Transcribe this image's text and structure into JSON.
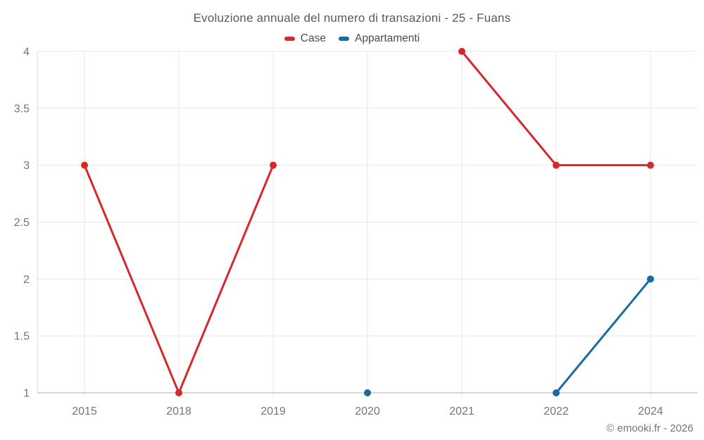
{
  "title": "Evoluzione annuale del numero di transazioni - 25 - Fuans",
  "footer": "© emooki.fr - 2026",
  "legend": {
    "items": [
      {
        "label": "Case",
        "color": "#d5282d"
      },
      {
        "label": "Appartamenti",
        "color": "#166ba0"
      }
    ]
  },
  "chart_data": {
    "type": "line",
    "title": "Evoluzione annuale del numero di transazioni - 25 - Fuans",
    "categories": [
      "2015",
      "2018",
      "2019",
      "2020",
      "2021",
      "2022",
      "2024"
    ],
    "series": [
      {
        "name": "Case",
        "color": "#d5282d",
        "values": [
          3,
          1,
          3,
          null,
          4,
          3,
          3
        ]
      },
      {
        "name": "Appartamenti",
        "color": "#166ba0",
        "values": [
          null,
          null,
          null,
          1,
          null,
          1,
          2
        ]
      }
    ],
    "xlabel": "",
    "ylabel": "",
    "ylim": [
      1,
      4
    ],
    "yticks": [
      1,
      1.5,
      2,
      2.5,
      3,
      3.5,
      4
    ],
    "grid": true,
    "legend_position": "top",
    "style": {
      "grid_color": "#e7e7e7",
      "x_axis_color": "#b0b0b0",
      "y_axis_color": "#dedede",
      "tick_text_color": "#757575",
      "line_width": 3,
      "marker_radius": 5
    }
  }
}
